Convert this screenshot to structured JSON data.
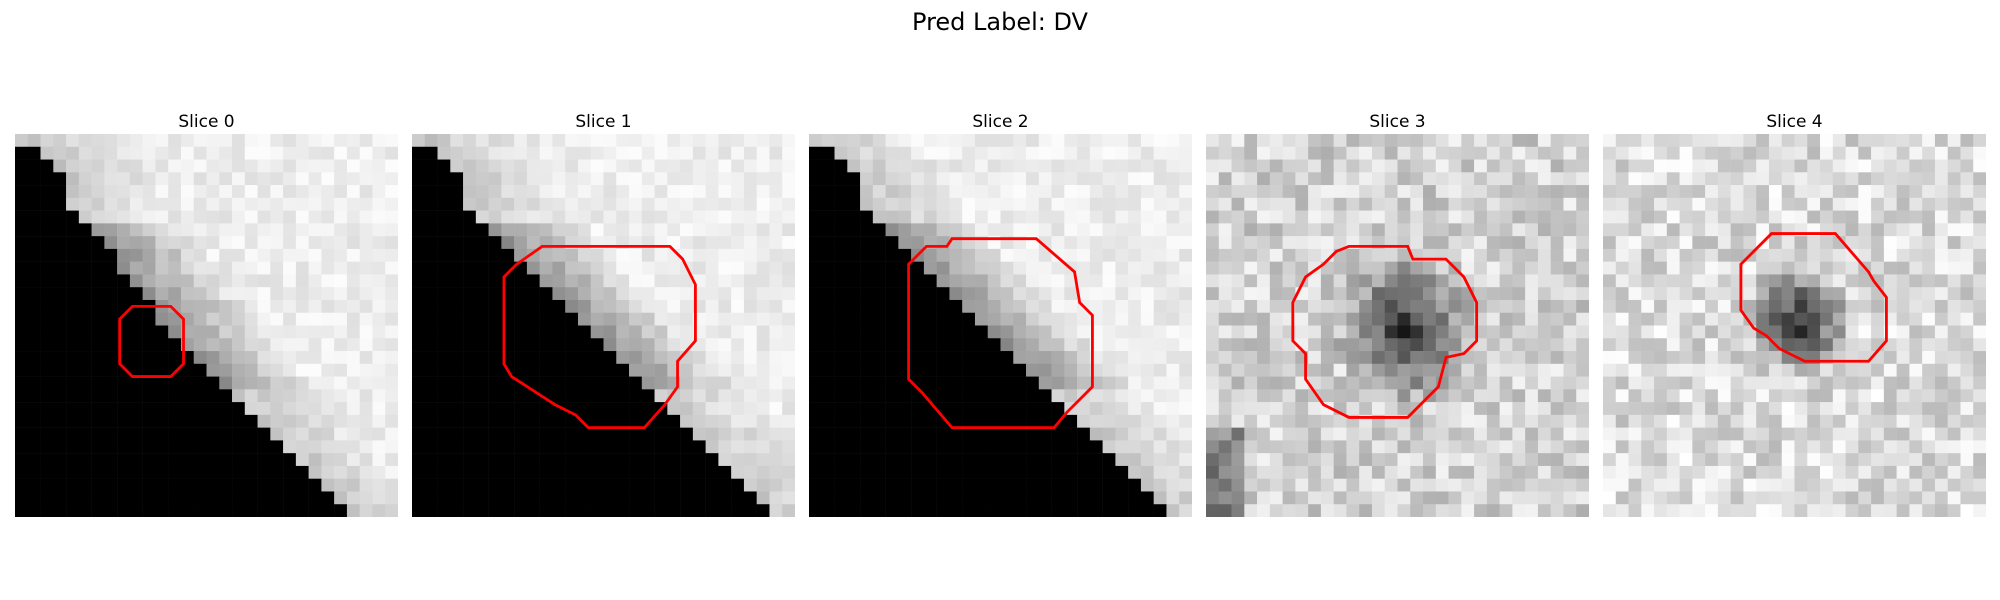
{
  "figure": {
    "title": "Pred Label: DV"
  },
  "panels": [
    {
      "title": "Slice 0",
      "mask": "corner",
      "corner": [
        [
          0,
          1
        ],
        [
          1,
          2
        ],
        [
          2,
          3
        ],
        [
          3,
          4
        ],
        [
          4,
          4
        ],
        [
          5,
          4
        ],
        [
          6,
          5
        ],
        [
          7,
          6
        ],
        [
          8,
          7
        ],
        [
          9,
          8
        ],
        [
          10,
          8
        ],
        [
          11,
          9
        ],
        [
          12,
          10
        ],
        [
          13,
          11
        ],
        [
          14,
          11
        ],
        [
          15,
          12
        ],
        [
          16,
          13
        ],
        [
          17,
          14
        ],
        [
          18,
          15
        ],
        [
          19,
          16
        ],
        [
          20,
          17
        ],
        [
          21,
          18
        ],
        [
          22,
          19
        ],
        [
          23,
          20
        ],
        [
          24,
          21
        ],
        [
          25,
          22
        ],
        [
          26,
          23
        ],
        [
          27,
          24
        ],
        [
          28,
          25
        ],
        [
          29,
          26
        ]
      ],
      "contour": [
        [
          8.2,
          14.5
        ],
        [
          9.2,
          13.5
        ],
        [
          12.2,
          13.5
        ],
        [
          13.2,
          14.5
        ],
        [
          13.2,
          18.0
        ],
        [
          12.2,
          19.0
        ],
        [
          9.2,
          19.0
        ],
        [
          8.2,
          18.0
        ]
      ]
    },
    {
      "title": "Slice 1",
      "mask": "corner",
      "corner": [
        [
          0,
          1
        ],
        [
          1,
          2
        ],
        [
          2,
          3
        ],
        [
          3,
          4
        ],
        [
          4,
          4
        ],
        [
          5,
          4
        ],
        [
          6,
          5
        ],
        [
          7,
          6
        ],
        [
          8,
          7
        ],
        [
          9,
          8
        ],
        [
          10,
          9
        ],
        [
          11,
          10
        ],
        [
          12,
          11
        ],
        [
          13,
          12
        ],
        [
          14,
          13
        ],
        [
          15,
          14
        ],
        [
          16,
          15
        ],
        [
          17,
          16
        ],
        [
          18,
          17
        ],
        [
          19,
          18
        ],
        [
          20,
          19
        ],
        [
          21,
          20
        ],
        [
          22,
          21
        ],
        [
          23,
          22
        ],
        [
          24,
          23
        ],
        [
          25,
          24
        ],
        [
          26,
          25
        ],
        [
          27,
          26
        ],
        [
          28,
          27
        ],
        [
          29,
          28
        ]
      ],
      "contour": [
        [
          7.2,
          11.2
        ],
        [
          8.2,
          10.2
        ],
        [
          10.2,
          8.8
        ],
        [
          20.2,
          8.8
        ],
        [
          21.2,
          9.8
        ],
        [
          22.2,
          11.8
        ],
        [
          22.2,
          16.2
        ],
        [
          20.8,
          17.8
        ],
        [
          20.8,
          19.8
        ],
        [
          19.8,
          21.2
        ],
        [
          18.2,
          23.0
        ],
        [
          13.8,
          23.0
        ],
        [
          12.8,
          22.0
        ],
        [
          11.2,
          21.2
        ],
        [
          7.8,
          19.0
        ],
        [
          7.2,
          18.0
        ]
      ]
    },
    {
      "title": "Slice 2",
      "mask": "corner",
      "corner": [
        [
          0,
          1
        ],
        [
          1,
          2
        ],
        [
          2,
          3
        ],
        [
          3,
          4
        ],
        [
          4,
          4
        ],
        [
          5,
          4
        ],
        [
          6,
          5
        ],
        [
          7,
          6
        ],
        [
          8,
          7
        ],
        [
          9,
          8
        ],
        [
          10,
          9
        ],
        [
          11,
          10
        ],
        [
          12,
          11
        ],
        [
          13,
          12
        ],
        [
          14,
          13
        ],
        [
          15,
          14
        ],
        [
          16,
          15
        ],
        [
          17,
          16
        ],
        [
          18,
          17
        ],
        [
          19,
          18
        ],
        [
          20,
          19
        ],
        [
          21,
          20
        ],
        [
          22,
          21
        ],
        [
          23,
          22
        ],
        [
          24,
          23
        ],
        [
          25,
          24
        ],
        [
          26,
          25
        ],
        [
          27,
          26
        ],
        [
          28,
          27
        ],
        [
          29,
          28
        ]
      ],
      "contour": [
        [
          7.8,
          10.2
        ],
        [
          9.2,
          8.8
        ],
        [
          10.8,
          8.8
        ],
        [
          11.2,
          8.2
        ],
        [
          17.8,
          8.2
        ],
        [
          20.8,
          10.8
        ],
        [
          21.2,
          13.2
        ],
        [
          22.2,
          14.2
        ],
        [
          22.2,
          19.8
        ],
        [
          20.2,
          21.8
        ],
        [
          19.2,
          23.0
        ],
        [
          11.2,
          23.0
        ],
        [
          8.8,
          20.2
        ],
        [
          7.8,
          19.2
        ]
      ]
    },
    {
      "title": "Slice 3",
      "mask": "blob",
      "blob": {
        "cx": 15.2,
        "cy": 14.8,
        "rx": 6.0,
        "ry": 6.5,
        "core": 0.18,
        "bg": 0.82
      },
      "contour": [
        [
          6.8,
          13.2
        ],
        [
          7.8,
          11.2
        ],
        [
          9.2,
          10.2
        ],
        [
          10.2,
          9.2
        ],
        [
          11.2,
          8.8
        ],
        [
          15.8,
          8.8
        ],
        [
          16.2,
          9.8
        ],
        [
          18.8,
          9.8
        ],
        [
          20.2,
          11.2
        ],
        [
          21.2,
          13.2
        ],
        [
          21.2,
          16.2
        ],
        [
          20.2,
          17.2
        ],
        [
          18.8,
          17.5
        ],
        [
          18.2,
          19.8
        ],
        [
          17.2,
          20.8
        ],
        [
          15.8,
          22.2
        ],
        [
          11.2,
          22.2
        ],
        [
          9.2,
          21.2
        ],
        [
          7.8,
          19.2
        ],
        [
          7.8,
          17.2
        ],
        [
          6.8,
          16.2
        ]
      ]
    },
    {
      "title": "Slice 4",
      "mask": "blob",
      "blob": {
        "cx": 14.8,
        "cy": 14.2,
        "rx": 4.5,
        "ry": 5.0,
        "core": 0.16,
        "bg": 0.86
      },
      "contour": [
        [
          10.8,
          10.2
        ],
        [
          13.2,
          7.8
        ],
        [
          18.2,
          7.8
        ],
        [
          20.8,
          10.8
        ],
        [
          21.2,
          11.5
        ],
        [
          22.2,
          12.8
        ],
        [
          22.2,
          16.2
        ],
        [
          20.8,
          17.8
        ],
        [
          15.8,
          17.8
        ],
        [
          13.8,
          16.8
        ],
        [
          12.8,
          15.8
        ],
        [
          11.8,
          15.2
        ],
        [
          10.8,
          13.8
        ]
      ]
    }
  ]
}
